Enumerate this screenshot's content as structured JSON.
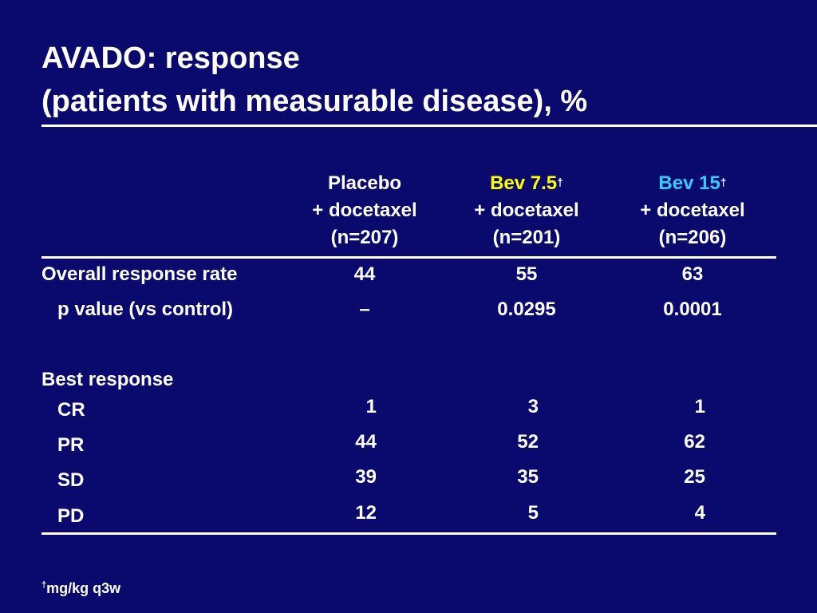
{
  "title": {
    "line1": "AVADO: response",
    "line2": "(patients with measurable disease), %"
  },
  "colors": {
    "background": "#0a0a6e",
    "text": "#ffffff",
    "bev75": "#ffff00",
    "bev15": "#33ccff"
  },
  "columns": [
    {
      "name": "Placebo",
      "dagger": "",
      "line2": "+ docetaxel",
      "line3": "(n=207)"
    },
    {
      "name": "Bev 7.5",
      "dagger": "†",
      "line2": "+ docetaxel",
      "line3": "(n=201)"
    },
    {
      "name": "Bev 15",
      "dagger": "†",
      "line2": "+ docetaxel",
      "line3": "(n=206)"
    }
  ],
  "rows": {
    "orr": {
      "label": "Overall response rate",
      "values": [
        "44",
        "55",
        "63"
      ]
    },
    "pvalue": {
      "label": "p value (vs control)",
      "values": [
        "–",
        "0.0295",
        "0.0001"
      ]
    },
    "best_response": {
      "label": "Best response"
    },
    "cr": {
      "label": "CR",
      "values": [
        "1",
        "3",
        "1"
      ]
    },
    "pr": {
      "label": "PR",
      "values": [
        "44",
        "52",
        "62"
      ]
    },
    "sd": {
      "label": "SD",
      "values": [
        "39",
        "35",
        "25"
      ]
    },
    "pd": {
      "label": "PD",
      "values": [
        "12",
        "5",
        "4"
      ]
    }
  },
  "footnote": {
    "dagger": "†",
    "text": "mg/kg q3w"
  }
}
